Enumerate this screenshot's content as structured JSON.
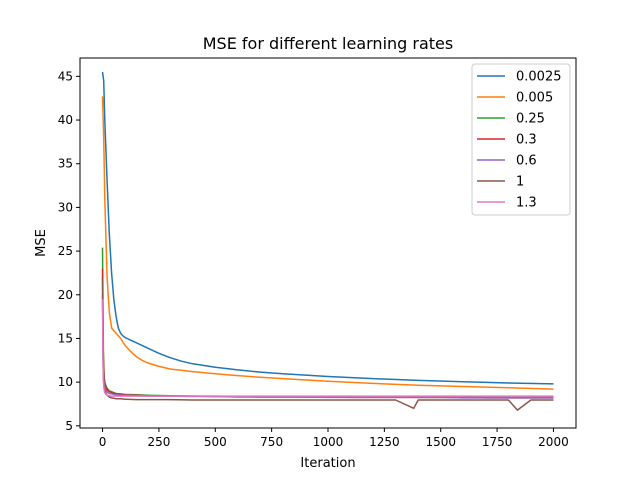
{
  "chart_data": {
    "type": "line",
    "title": "MSE for different learning rates",
    "xlabel": "Iteration",
    "ylabel": "MSE",
    "xlim": [
      -100,
      2100
    ],
    "ylim": [
      4.75,
      47.1
    ],
    "xticks": [
      0,
      250,
      500,
      750,
      1000,
      1250,
      1500,
      1750,
      2000
    ],
    "yticks": [
      5,
      10,
      15,
      20,
      25,
      30,
      35,
      40,
      45
    ],
    "grid": false,
    "legend_position": "top-right",
    "series": [
      {
        "name": "0.0025",
        "color": "#1f77b4",
        "x": [
          0,
          5,
          10,
          20,
          30,
          40,
          50,
          60,
          70,
          80,
          90,
          100,
          125,
          150,
          175,
          200,
          250,
          300,
          350,
          400,
          450,
          500,
          600,
          700,
          800,
          900,
          1000,
          1200,
          1400,
          1600,
          1800,
          2000
        ],
        "y": [
          45.5,
          44.5,
          40.0,
          33.0,
          27.0,
          22.5,
          19.5,
          17.5,
          16.2,
          15.6,
          15.3,
          15.1,
          14.8,
          14.5,
          14.2,
          13.9,
          13.3,
          12.8,
          12.4,
          12.1,
          11.9,
          11.7,
          11.4,
          11.15,
          10.95,
          10.8,
          10.65,
          10.4,
          10.2,
          10.05,
          9.9,
          9.8
        ]
      },
      {
        "name": "0.005",
        "color": "#ff7f0e",
        "x": [
          0,
          5,
          10,
          20,
          30,
          40,
          50,
          60,
          70,
          80,
          90,
          100,
          125,
          150,
          175,
          200,
          250,
          300,
          400,
          500,
          600,
          700,
          800,
          1000,
          1200,
          1400,
          1600,
          1800,
          2000
        ],
        "y": [
          42.7,
          38.0,
          31.0,
          22.0,
          18.0,
          16.2,
          15.9,
          15.6,
          15.3,
          15.0,
          14.6,
          14.2,
          13.5,
          12.9,
          12.5,
          12.2,
          11.8,
          11.5,
          11.2,
          10.95,
          10.75,
          10.55,
          10.4,
          10.1,
          9.85,
          9.65,
          9.5,
          9.35,
          9.2
        ]
      },
      {
        "name": "0.25",
        "color": "#2ca02c",
        "x": [
          0,
          2,
          4,
          6,
          8,
          10,
          15,
          20,
          30,
          40,
          50,
          60,
          80,
          100,
          150,
          200,
          300,
          400,
          500,
          600,
          700,
          800,
          900,
          1000,
          1100,
          1200,
          1300,
          1400,
          1500,
          1600,
          1700,
          1800,
          1900,
          2000
        ],
        "y": [
          25.4,
          18.5,
          13.5,
          11.5,
          10.5,
          10.0,
          9.6,
          9.3,
          9.0,
          8.9,
          8.8,
          8.7,
          8.65,
          8.6,
          8.55,
          8.5,
          8.45,
          8.4,
          8.4,
          8.35,
          8.35,
          8.35,
          8.3,
          8.3,
          8.3,
          8.3,
          8.3,
          8.25,
          8.25,
          8.25,
          8.25,
          8.25,
          8.25,
          8.25
        ]
      },
      {
        "name": "0.3",
        "color": "#d62728",
        "x": [
          0,
          2,
          4,
          6,
          8,
          10,
          15,
          20,
          30,
          40,
          50,
          60,
          80,
          100,
          150,
          200,
          300,
          400,
          500,
          600,
          700,
          800,
          900,
          1000,
          1100,
          1200,
          1300,
          1400,
          1500,
          1600,
          1700,
          1800,
          1900,
          2000
        ],
        "y": [
          23.0,
          16.5,
          12.5,
          11.0,
          10.2,
          9.8,
          9.4,
          9.1,
          8.9,
          8.8,
          8.7,
          8.65,
          8.6,
          8.55,
          8.5,
          8.45,
          8.4,
          8.4,
          8.35,
          8.35,
          8.3,
          8.3,
          8.3,
          8.3,
          8.25,
          8.25,
          8.25,
          8.25,
          8.25,
          8.25,
          8.2,
          8.2,
          8.2,
          8.2
        ]
      },
      {
        "name": "0.6",
        "color": "#9467bd",
        "x": [
          0,
          2,
          4,
          6,
          8,
          10,
          15,
          20,
          30,
          40,
          50,
          60,
          80,
          100,
          150,
          200,
          300,
          400,
          500,
          600,
          700,
          800,
          900,
          1000,
          1100,
          1200,
          1300,
          1400,
          1500,
          1600,
          1700,
          1800,
          1900,
          2000
        ],
        "y": [
          20.0,
          14.0,
          11.2,
          10.2,
          9.7,
          9.4,
          9.0,
          8.85,
          8.7,
          8.65,
          8.6,
          8.55,
          8.5,
          8.5,
          8.45,
          8.4,
          8.4,
          8.35,
          8.35,
          8.3,
          8.3,
          8.3,
          8.3,
          8.25,
          8.25,
          8.25,
          8.25,
          8.25,
          8.25,
          8.2,
          8.2,
          8.2,
          8.2,
          8.2
        ]
      },
      {
        "name": "1",
        "color": "#8c564b",
        "x": [
          0,
          2,
          4,
          6,
          8,
          10,
          15,
          20,
          30,
          40,
          50,
          60,
          80,
          100,
          150,
          200,
          300,
          400,
          500,
          600,
          700,
          800,
          900,
          1000,
          1100,
          1200,
          1300,
          1380,
          1400,
          1500,
          1600,
          1700,
          1800,
          1840,
          1900,
          2000
        ],
        "y": [
          22.0,
          13.0,
          10.5,
          9.6,
          9.2,
          9.0,
          8.7,
          8.5,
          8.3,
          8.2,
          8.15,
          8.1,
          8.1,
          8.05,
          8.0,
          8.0,
          8.0,
          7.95,
          7.95,
          7.95,
          7.95,
          7.95,
          7.95,
          7.95,
          7.95,
          7.95,
          7.95,
          7.0,
          7.95,
          7.95,
          7.95,
          7.95,
          7.95,
          6.8,
          7.95,
          7.95
        ]
      },
      {
        "name": "1.3",
        "color": "#e377c2",
        "x": [
          0,
          2,
          4,
          6,
          8,
          10,
          15,
          20,
          30,
          40,
          50,
          60,
          80,
          100,
          150,
          200,
          300,
          400,
          500,
          600,
          700,
          800,
          900,
          1000,
          1100,
          1200,
          1300,
          1400,
          1500,
          1600,
          1700,
          1800,
          1900,
          2000
        ],
        "y": [
          19.5,
          12.5,
          10.2,
          9.4,
          9.0,
          8.8,
          8.6,
          8.5,
          8.45,
          8.4,
          8.4,
          8.4,
          8.4,
          8.4,
          8.4,
          8.4,
          8.4,
          8.4,
          8.4,
          8.4,
          8.4,
          8.4,
          8.4,
          8.4,
          8.4,
          8.4,
          8.4,
          8.4,
          8.4,
          8.4,
          8.4,
          8.4,
          8.4,
          8.4
        ]
      }
    ]
  }
}
